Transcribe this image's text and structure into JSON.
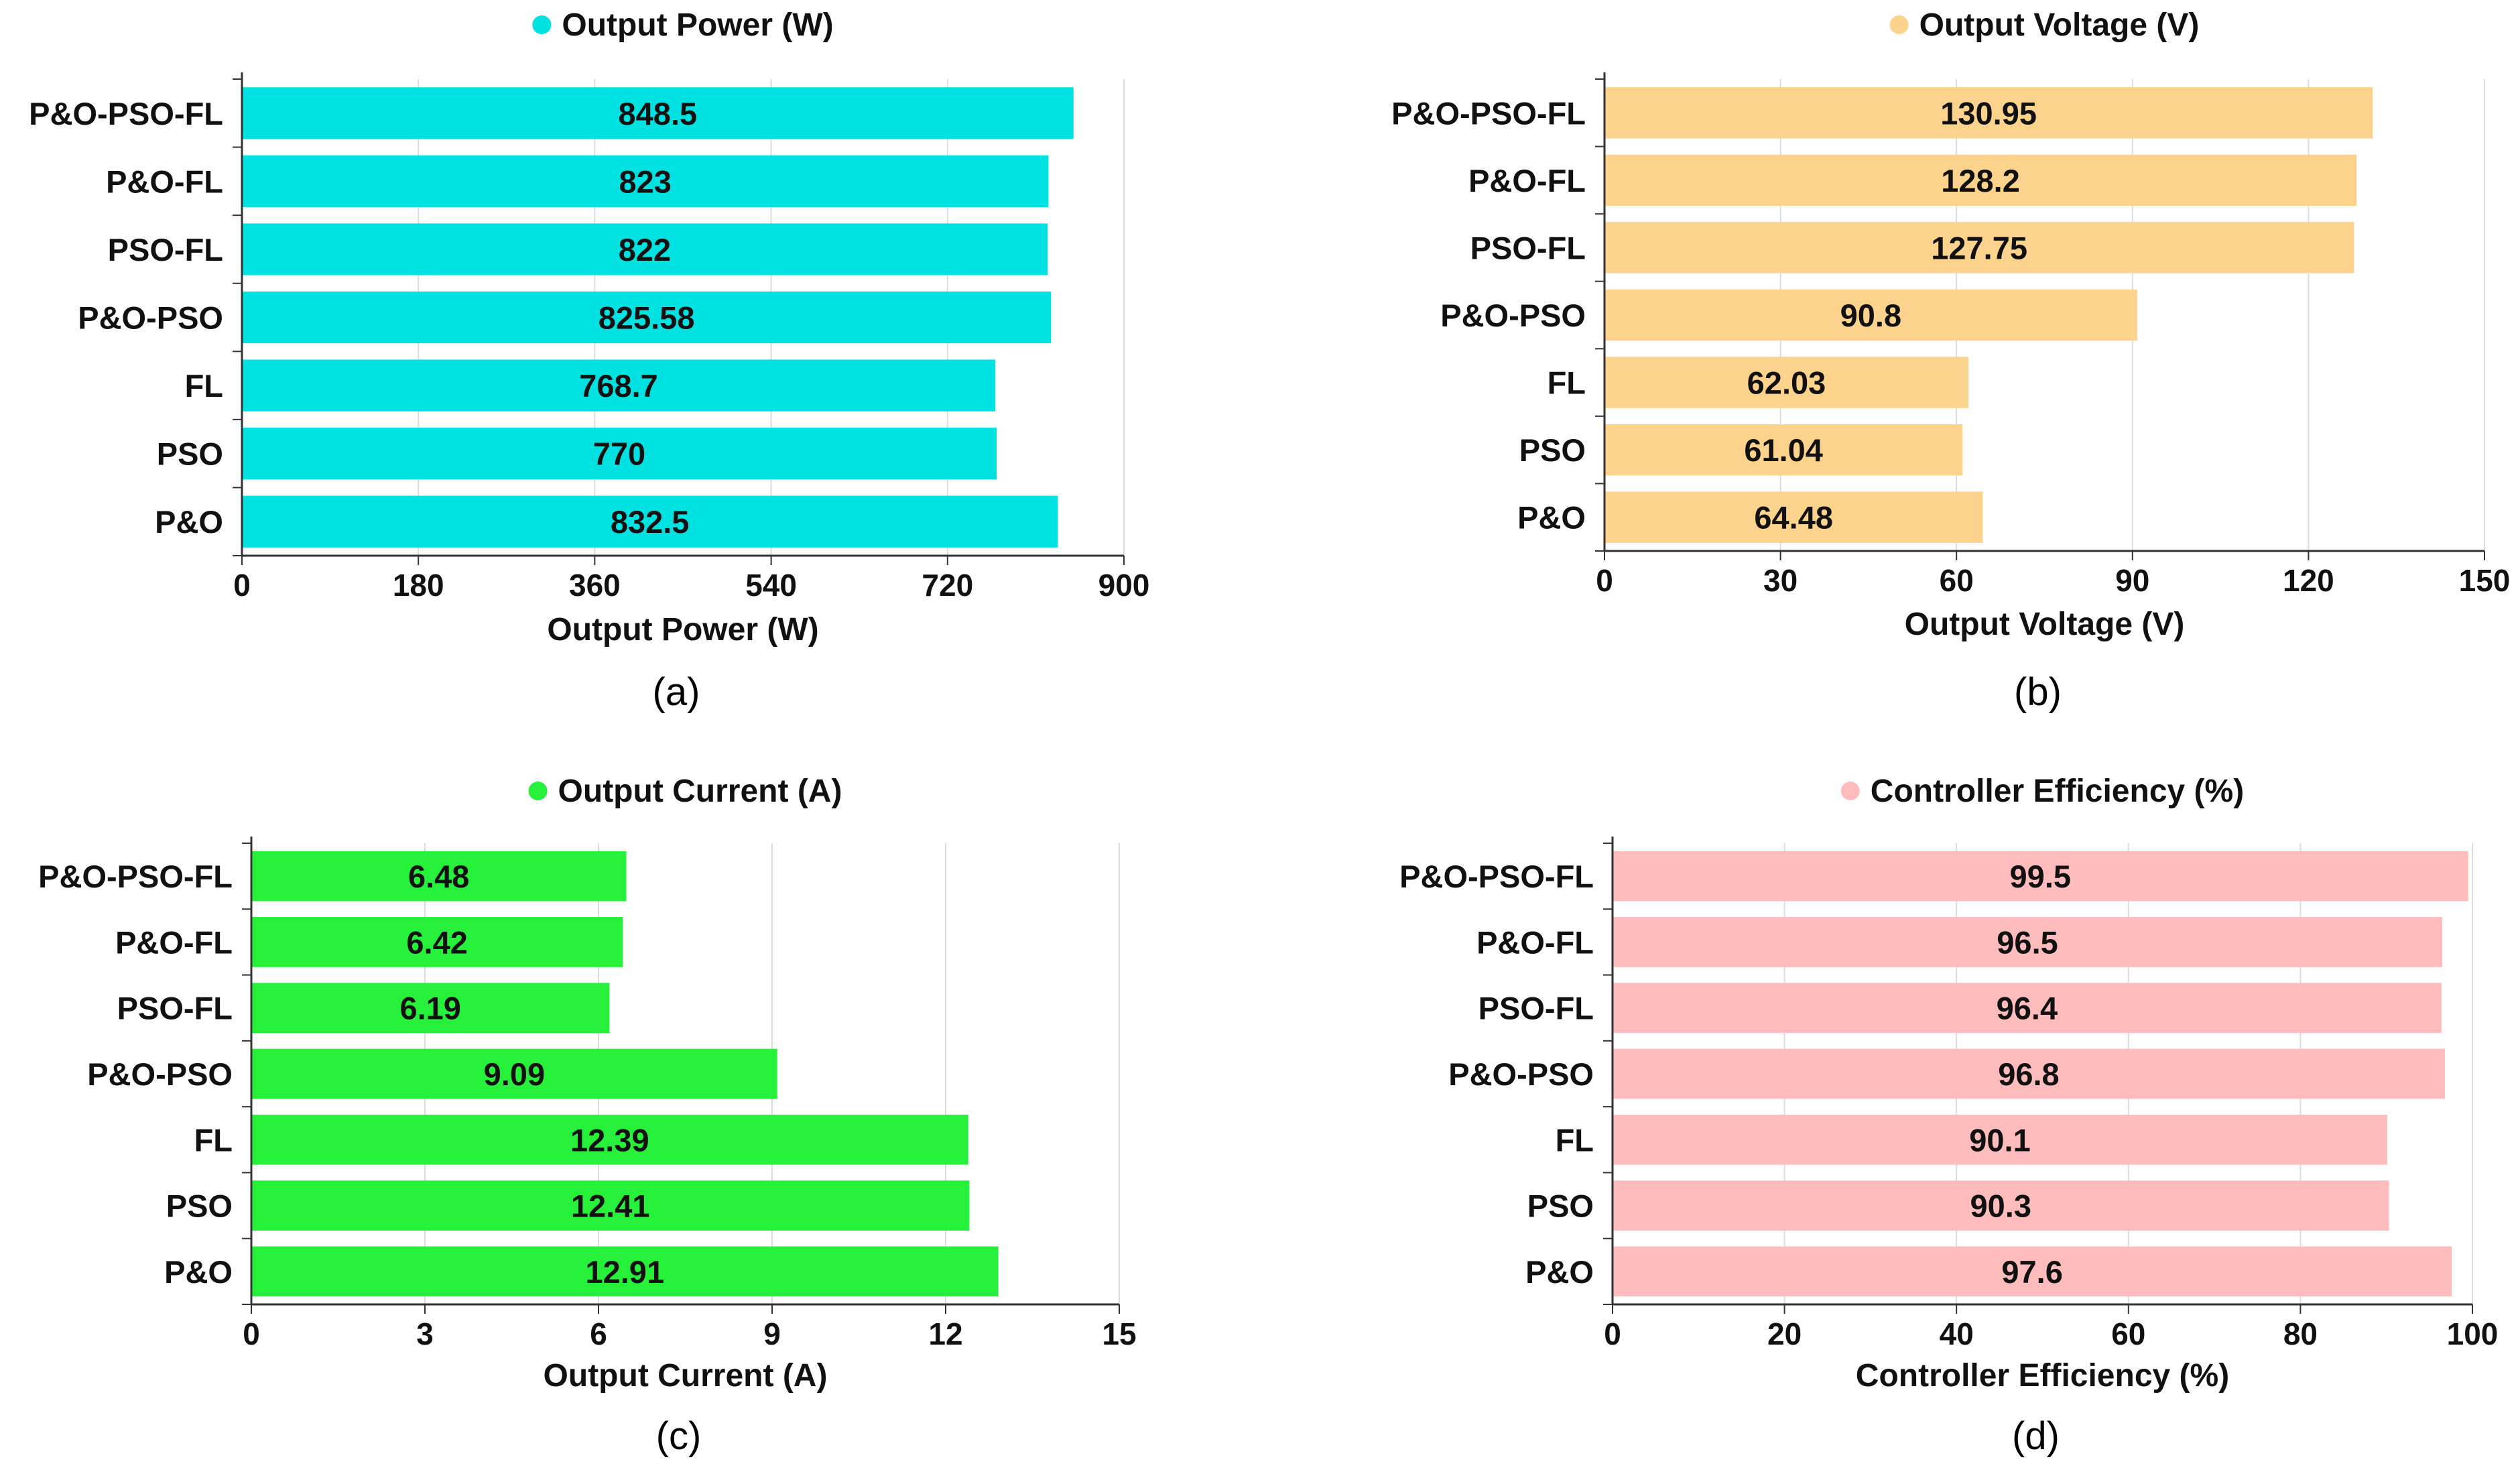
{
  "chart_data": [
    {
      "type": "bar",
      "orientation": "horizontal",
      "panel": "(a)",
      "title": "Output Power (W)",
      "legend_label": "Output Power (W)",
      "xlabel": "Output Power (W)",
      "ylabel": "",
      "categories": [
        "P&O-PSO-FL",
        "P&O-FL",
        "PSO-FL",
        "P&O-PSO",
        "FL",
        "PSO",
        "P&O"
      ],
      "values": [
        848.5,
        823,
        822,
        825.58,
        768.7,
        770,
        832.5
      ],
      "value_labels": [
        "848.5",
        "823",
        "822",
        "825.58",
        "768.7",
        "770",
        "832.5"
      ],
      "xlim": [
        0,
        900
      ],
      "ticks": [
        0,
        180,
        360,
        540,
        720,
        900
      ],
      "color": "#00e1e1",
      "grid": true
    },
    {
      "type": "bar",
      "orientation": "horizontal",
      "panel": "(b)",
      "title": "Output Voltage (V)",
      "legend_label": "Output Voltage (V)",
      "xlabel": "Output Voltage (V)",
      "ylabel": "",
      "categories": [
        "P&O-PSO-FL",
        "P&O-FL",
        "PSO-FL",
        "P&O-PSO",
        "FL",
        "PSO",
        "P&O"
      ],
      "values": [
        130.95,
        128.2,
        127.75,
        90.8,
        62.03,
        61.04,
        64.48
      ],
      "value_labels": [
        "130.95",
        "128.2",
        "127.75",
        "90.8",
        "62.03",
        "61.04",
        "64.48"
      ],
      "xlim": [
        0,
        150
      ],
      "ticks": [
        0,
        30,
        60,
        90,
        120,
        150
      ],
      "color": "#fcd38d",
      "grid": true
    },
    {
      "type": "bar",
      "orientation": "horizontal",
      "panel": "(c)",
      "title": "Output Current (A)",
      "legend_label": "Output Current (A)",
      "xlabel": "Output Current (A)",
      "ylabel": "",
      "categories": [
        "P&O-PSO-FL",
        "P&O-FL",
        "PSO-FL",
        "P&O-PSO",
        "FL",
        "PSO",
        "P&O"
      ],
      "values": [
        6.48,
        6.42,
        6.19,
        9.09,
        12.39,
        12.41,
        12.91
      ],
      "value_labels": [
        "6.48",
        "6.42",
        "6.19",
        "9.09",
        "12.39",
        "12.41",
        "12.91"
      ],
      "xlim": [
        0,
        15
      ],
      "ticks": [
        0,
        3,
        6,
        9,
        12,
        15
      ],
      "color": "#27f03a",
      "grid": true
    },
    {
      "type": "bar",
      "orientation": "horizontal",
      "panel": "(d)",
      "title": "Controller Efficiency (%)",
      "legend_label": "Controller Efficiency (%)",
      "xlabel": "Controller Efficiency (%)",
      "ylabel": "",
      "categories": [
        "P&O-PSO-FL",
        "P&O-FL",
        "PSO-FL",
        "P&O-PSO",
        "FL",
        "PSO",
        "P&O"
      ],
      "values": [
        99.5,
        96.5,
        96.4,
        96.8,
        90.1,
        90.3,
        97.6
      ],
      "value_labels": [
        "99.5",
        "96.5",
        "96.4",
        "96.8",
        "90.1",
        "90.3",
        "97.6"
      ],
      "xlim": [
        0,
        100
      ],
      "ticks": [
        0,
        20,
        40,
        60,
        80,
        100
      ],
      "color": "#ffbcbc",
      "grid": true
    }
  ]
}
